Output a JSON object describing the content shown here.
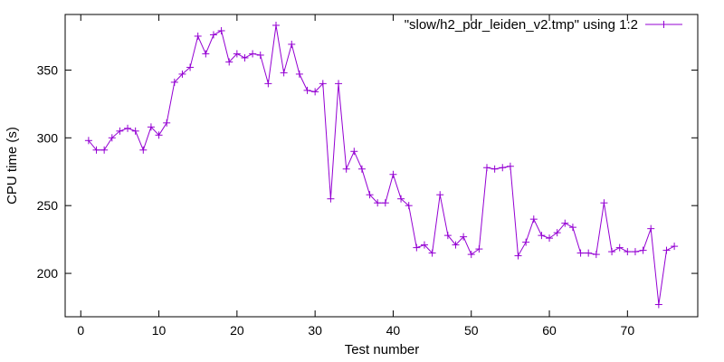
{
  "chart_data": {
    "type": "line",
    "title": "",
    "xlabel": "Test number",
    "ylabel": "CPU time (s)",
    "xlim": [
      -2,
      79
    ],
    "ylim": [
      168,
      391
    ],
    "x_ticks": [
      0,
      10,
      20,
      30,
      40,
      50,
      60,
      70
    ],
    "y_ticks": [
      200,
      250,
      300,
      350
    ],
    "grid": false,
    "legend_position": "top-right",
    "series": [
      {
        "name": "\"slow/h2_pdr_leiden_v2.tmp\" using 1:2",
        "color": "#9400d3",
        "marker": "plus",
        "x": [
          1,
          2,
          3,
          4,
          5,
          6,
          7,
          8,
          9,
          10,
          11,
          12,
          13,
          14,
          15,
          16,
          17,
          18,
          19,
          20,
          21,
          22,
          23,
          24,
          25,
          26,
          27,
          28,
          29,
          30,
          31,
          32,
          33,
          34,
          35,
          36,
          37,
          38,
          39,
          40,
          41,
          42,
          43,
          44,
          45,
          46,
          47,
          48,
          49,
          50,
          51,
          52,
          53,
          54,
          55,
          56,
          57,
          58,
          59,
          60,
          61,
          62,
          63,
          64,
          65,
          66,
          67,
          68,
          69,
          70,
          71,
          72,
          73,
          74,
          75,
          76
        ],
        "y": [
          298,
          291,
          291,
          300,
          305,
          307,
          305,
          291,
          308,
          302,
          311,
          341,
          347,
          352,
          375,
          362,
          376,
          379,
          356,
          362,
          359,
          362,
          361,
          340,
          383,
          348,
          369,
          347,
          335,
          334,
          340,
          255,
          340,
          277,
          290,
          277,
          258,
          252,
          252,
          273,
          255,
          250,
          219,
          221,
          215,
          258,
          228,
          221,
          227,
          214,
          218,
          278,
          277,
          278,
          279,
          213,
          223,
          240,
          228,
          226,
          230,
          237,
          234,
          215,
          215,
          214,
          252,
          216,
          219,
          216,
          216,
          217,
          233,
          177,
          217,
          220
        ]
      }
    ]
  }
}
